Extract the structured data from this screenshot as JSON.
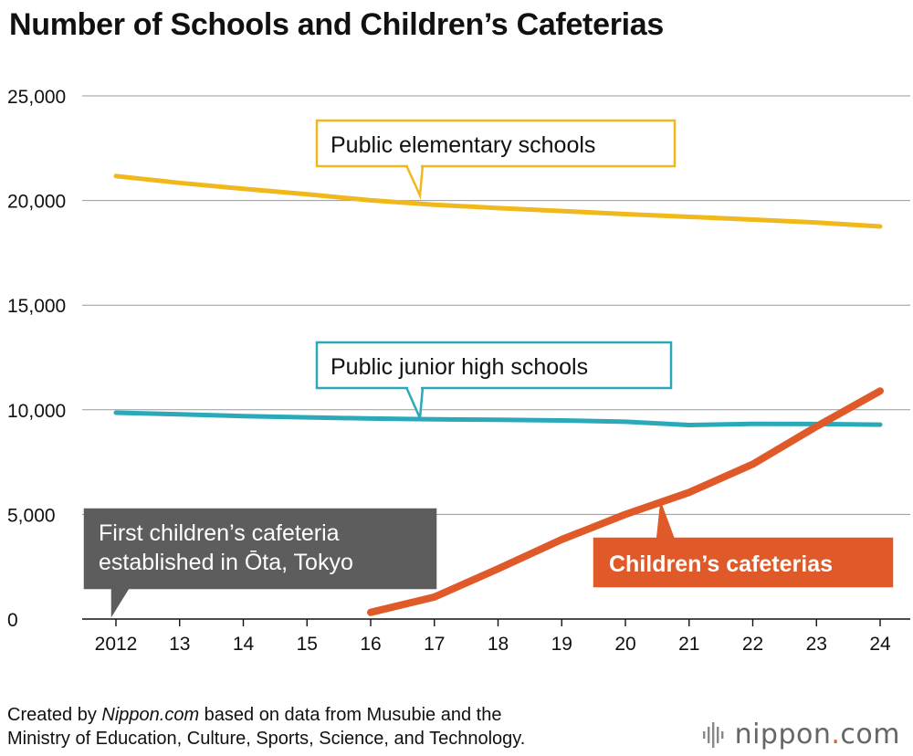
{
  "chart_data": {
    "type": "line",
    "title": "Number of Schools and Children’s Cafeterias",
    "x": [
      "2012",
      "13",
      "14",
      "15",
      "16",
      "17",
      "18",
      "19",
      "20",
      "21",
      "22",
      "23",
      "24"
    ],
    "ylim": [
      0,
      25000
    ],
    "yticks": [
      "0",
      "5,000",
      "10,000",
      "15,000",
      "20,000",
      "25,000"
    ],
    "ytick_values": [
      0,
      5000,
      10000,
      15000,
      20000,
      25000
    ],
    "grid": true,
    "series": [
      {
        "name": "Public elementary schools",
        "color": "#f0b81b",
        "values": [
          21170,
          20840,
          20560,
          20300,
          20010,
          19800,
          19640,
          19500,
          19350,
          19220,
          19090,
          18950,
          18760
        ]
      },
      {
        "name": "Public junior high schools",
        "color": "#2ba9b9",
        "values": [
          9860,
          9780,
          9700,
          9640,
          9580,
          9540,
          9520,
          9490,
          9430,
          9270,
          9330,
          9320,
          9290
        ]
      },
      {
        "name": "Children’s cafeterias",
        "color": "#e05a29",
        "values": [
          null,
          null,
          null,
          null,
          320,
          1050,
          2400,
          3800,
          5000,
          6050,
          7400,
          9200,
          10900
        ]
      }
    ],
    "annotations": [
      {
        "lines": [
          "First children’s cafeteria",
          "established in Ōta, Tokyo"
        ],
        "x": "2012"
      }
    ]
  },
  "footer": {
    "credit_prefix": "Created by ",
    "credit_brand": "Nippon.com",
    "credit_line1_rest": " based on data from Musubie and the",
    "credit_line2": "Ministry of Education, Culture, Sports, Science, and Technology.",
    "logo_text": "nippon",
    "logo_dot": ".",
    "logo_suffix": "com",
    "logo_icon": "sound-wave-icon"
  }
}
